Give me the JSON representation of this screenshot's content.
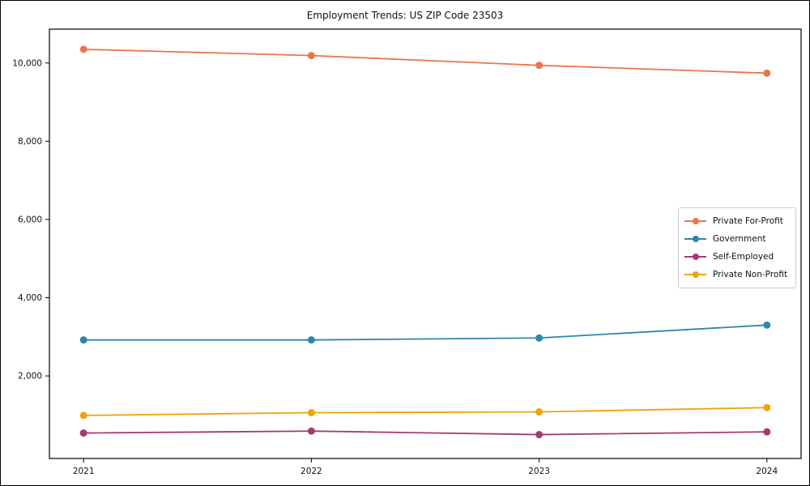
{
  "figure": {
    "title": "Employment Trends: US ZIP Code 23503"
  },
  "chart_data": {
    "type": "line",
    "title": "Employment Trends: US ZIP Code 23503",
    "xlabel": "",
    "ylabel": "",
    "x": [
      2021,
      2022,
      2023,
      2024
    ],
    "x_tick_labels": [
      "2021",
      "2022",
      "2023",
      "2024"
    ],
    "y_ticks": [
      {
        "value": 2000,
        "label": "2,000"
      },
      {
        "value": 4000,
        "label": "4,000"
      },
      {
        "value": 6000,
        "label": "6,000"
      },
      {
        "value": 8000,
        "label": "8,000"
      },
      {
        "value": 10000,
        "label": "10,000"
      }
    ],
    "xlim": [
      2020.85,
      2024.15
    ],
    "ylim": [
      -110,
      10865
    ],
    "grid": false,
    "legend_position": "center-right",
    "marker": "circle",
    "series": [
      {
        "name": "Private For-Profit",
        "color": "#E8764B",
        "values": [
          10350,
          10190,
          9940,
          9740
        ]
      },
      {
        "name": "Government",
        "color": "#2E86AB",
        "values": [
          2920,
          2920,
          2970,
          3300
        ]
      },
      {
        "name": "Self-Employed",
        "color": "#A23B72",
        "values": [
          540,
          590,
          500,
          570
        ]
      },
      {
        "name": "Private Non-Profit",
        "color": "#F1A208",
        "values": [
          990,
          1060,
          1080,
          1190
        ]
      }
    ]
  }
}
